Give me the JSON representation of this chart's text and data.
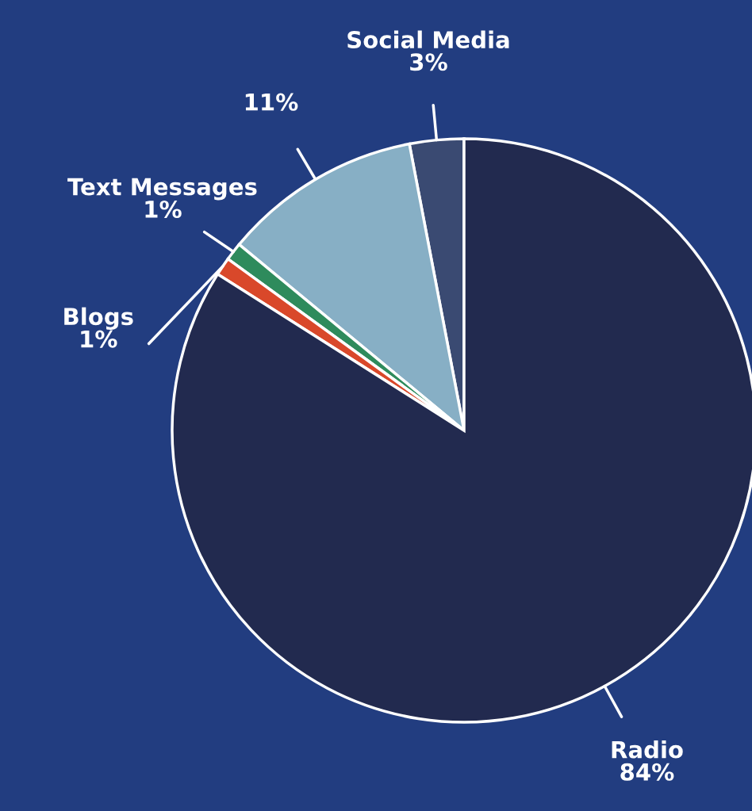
{
  "chart_data": {
    "type": "pie",
    "categories": [
      "Social Media",
      null,
      "Text Messages",
      "Blogs",
      "Radio"
    ],
    "values": [
      3,
      11,
      1,
      1,
      84
    ],
    "colors": [
      "#3a4a72",
      "#87afc5",
      "#2e8b5c",
      "#d9482a",
      "#222a4f"
    ],
    "value_labels": [
      "3%",
      "11%",
      "1%",
      "1%",
      "84%"
    ]
  }
}
